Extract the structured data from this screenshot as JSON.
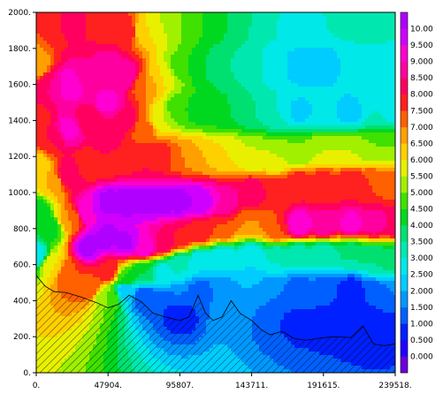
{
  "chart_data": {
    "type": "heatmap",
    "title": "",
    "xlabel": "",
    "ylabel": "",
    "x_ticks": [
      "0.",
      "47904.",
      "95807.",
      "143711.",
      "191615.",
      "239518."
    ],
    "y_ticks": [
      "0.",
      "200.",
      "400.",
      "600.",
      "800.",
      "1000.",
      "1200.",
      "1400.",
      "1600.",
      "1800.",
      "2000."
    ],
    "xlim": [
      0,
      239518
    ],
    "ylim": [
      0,
      2000
    ],
    "colorbar": {
      "labels": [
        "0.000",
        "0.500",
        "1.000",
        "1.500",
        "2.000",
        "2.500",
        "3.000",
        "3.500",
        "4.000",
        "4.500",
        "5.000",
        "5.500",
        "6.000",
        "6.500",
        "7.000",
        "7.500",
        "8.000",
        "8.500",
        "9.000",
        "9.500",
        "10.00"
      ],
      "colors": [
        "#6a00d8",
        "#2000ff",
        "#0020ff",
        "#0060ff",
        "#0098ff",
        "#00ccff",
        "#00e8e8",
        "#00e8b0",
        "#00e070",
        "#00d820",
        "#40e000",
        "#a0f000",
        "#e8f000",
        "#ffd000",
        "#ffa000",
        "#ff6000",
        "#ff2020",
        "#ff0060",
        "#ff00a0",
        "#ff00d0",
        "#d000ff",
        "#b000ff"
      ]
    },
    "terrain_profile": [
      [
        0,
        540
      ],
      [
        6000,
        480
      ],
      [
        12000,
        450
      ],
      [
        20000,
        445
      ],
      [
        30000,
        420
      ],
      [
        40000,
        390
      ],
      [
        47904,
        360
      ],
      [
        55000,
        380
      ],
      [
        62000,
        430
      ],
      [
        70000,
        395
      ],
      [
        78000,
        330
      ],
      [
        86000,
        310
      ],
      [
        95807,
        290
      ],
      [
        102000,
        310
      ],
      [
        108000,
        430
      ],
      [
        113000,
        330
      ],
      [
        118000,
        290
      ],
      [
        124000,
        310
      ],
      [
        130000,
        400
      ],
      [
        136000,
        330
      ],
      [
        143711,
        290
      ],
      [
        150000,
        240
      ],
      [
        156000,
        210
      ],
      [
        164000,
        230
      ],
      [
        172000,
        190
      ],
      [
        180000,
        180
      ],
      [
        191615,
        195
      ],
      [
        200000,
        200
      ],
      [
        210000,
        195
      ],
      [
        218000,
        260
      ],
      [
        225000,
        160
      ],
      [
        232000,
        150
      ],
      [
        239518,
        160
      ]
    ],
    "field_points": [
      [
        0,
        1700,
        6.5
      ],
      [
        0,
        1400,
        7.8
      ],
      [
        0,
        1150,
        6.0
      ],
      [
        0,
        900,
        4.0
      ],
      [
        0,
        650,
        2.5
      ],
      [
        10000,
        1950,
        7.5
      ],
      [
        10000,
        1600,
        8.5
      ],
      [
        10000,
        1300,
        8.0
      ],
      [
        10000,
        1050,
        6.5
      ],
      [
        10000,
        800,
        4.2
      ],
      [
        10000,
        600,
        6.0
      ],
      [
        22000,
        1950,
        8.2
      ],
      [
        22000,
        1600,
        9.5
      ],
      [
        22000,
        1350,
        9.2
      ],
      [
        22000,
        1100,
        8.5
      ],
      [
        22000,
        850,
        7.0
      ],
      [
        22000,
        550,
        7.5
      ],
      [
        35000,
        1900,
        8.0
      ],
      [
        35000,
        1650,
        8.5
      ],
      [
        35000,
        1400,
        8.0
      ],
      [
        35000,
        1150,
        7.5
      ],
      [
        35000,
        900,
        9.5
      ],
      [
        35000,
        700,
        10.2
      ],
      [
        35000,
        480,
        7.5
      ],
      [
        47904,
        1950,
        7.5
      ],
      [
        47904,
        1700,
        8.8
      ],
      [
        47904,
        1500,
        9.2
      ],
      [
        47904,
        1300,
        8.5
      ],
      [
        47904,
        1150,
        7.8
      ],
      [
        47904,
        950,
        10.2
      ],
      [
        47904,
        750,
        10.2
      ],
      [
        47904,
        560,
        8.0
      ],
      [
        47904,
        420,
        5.0
      ],
      [
        60000,
        1900,
        8.0
      ],
      [
        60000,
        1650,
        9.0
      ],
      [
        60000,
        1400,
        8.2
      ],
      [
        60000,
        1200,
        7.5
      ],
      [
        60000,
        950,
        10.2
      ],
      [
        60000,
        720,
        10.1
      ],
      [
        60000,
        520,
        4.5
      ],
      [
        60000,
        460,
        2.0
      ],
      [
        72000,
        1900,
        6.0
      ],
      [
        72000,
        1600,
        7.0
      ],
      [
        72000,
        1350,
        7.2
      ],
      [
        72000,
        1180,
        8.0
      ],
      [
        72000,
        950,
        10.2
      ],
      [
        72000,
        700,
        9.5
      ],
      [
        72000,
        560,
        4.0
      ],
      [
        72000,
        420,
        1.0
      ],
      [
        84000,
        1950,
        5.5
      ],
      [
        84000,
        1650,
        6.0
      ],
      [
        84000,
        1400,
        5.5
      ],
      [
        84000,
        1200,
        7.8
      ],
      [
        84000,
        950,
        10.2
      ],
      [
        84000,
        720,
        8.5
      ],
      [
        84000,
        560,
        2.8
      ],
      [
        84000,
        380,
        1.0
      ],
      [
        95807,
        1950,
        5.0
      ],
      [
        95807,
        1700,
        4.8
      ],
      [
        95807,
        1450,
        4.5
      ],
      [
        95807,
        1200,
        7.0
      ],
      [
        95807,
        950,
        10.2
      ],
      [
        95807,
        750,
        8.0
      ],
      [
        95807,
        600,
        3.0
      ],
      [
        95807,
        420,
        1.5
      ],
      [
        95807,
        330,
        0.5
      ],
      [
        110000,
        1950,
        4.5
      ],
      [
        110000,
        1700,
        4.0
      ],
      [
        110000,
        1450,
        4.2
      ],
      [
        110000,
        1200,
        6.5
      ],
      [
        110000,
        950,
        10.0
      ],
      [
        110000,
        780,
        7.8
      ],
      [
        110000,
        620,
        2.5
      ],
      [
        110000,
        450,
        1.2
      ],
      [
        125000,
        1950,
        4.0
      ],
      [
        125000,
        1700,
        3.5
      ],
      [
        125000,
        1450,
        4.0
      ],
      [
        125000,
        1220,
        6.0
      ],
      [
        125000,
        950,
        9.0
      ],
      [
        125000,
        800,
        7.5
      ],
      [
        125000,
        640,
        2.5
      ],
      [
        125000,
        460,
        1.8
      ],
      [
        143711,
        1950,
        3.5
      ],
      [
        143711,
        1700,
        3.2
      ],
      [
        143711,
        1450,
        3.5
      ],
      [
        143711,
        1200,
        5.5
      ],
      [
        143711,
        1000,
        8.5
      ],
      [
        143711,
        820,
        7.0
      ],
      [
        143711,
        650,
        2.5
      ],
      [
        143711,
        480,
        2.0
      ],
      [
        143711,
        340,
        1.5
      ],
      [
        160000,
        1950,
        3.0
      ],
      [
        160000,
        1700,
        2.6
      ],
      [
        160000,
        1450,
        3.0
      ],
      [
        160000,
        1200,
        5.5
      ],
      [
        160000,
        1000,
        7.8
      ],
      [
        160000,
        800,
        7.5
      ],
      [
        160000,
        640,
        3.0
      ],
      [
        160000,
        460,
        1.5
      ],
      [
        160000,
        300,
        1.0
      ],
      [
        175000,
        1950,
        2.8
      ],
      [
        175000,
        1700,
        2.3
      ],
      [
        175000,
        1450,
        2.4
      ],
      [
        175000,
        1230,
        5.0
      ],
      [
        175000,
        1040,
        8.0
      ],
      [
        175000,
        820,
        9.5
      ],
      [
        175000,
        660,
        3.2
      ],
      [
        175000,
        460,
        1.2
      ],
      [
        175000,
        280,
        0.8
      ],
      [
        191615,
        1950,
        3.0
      ],
      [
        191615,
        1700,
        2.2
      ],
      [
        191615,
        1450,
        2.5
      ],
      [
        191615,
        1230,
        5.5
      ],
      [
        191615,
        1050,
        7.8
      ],
      [
        191615,
        820,
        9.0
      ],
      [
        191615,
        660,
        3.0
      ],
      [
        191615,
        440,
        1.0
      ],
      [
        191615,
        270,
        0.8
      ],
      [
        210000,
        1950,
        3.2
      ],
      [
        210000,
        1700,
        2.6
      ],
      [
        210000,
        1450,
        2.3
      ],
      [
        210000,
        1230,
        5.5
      ],
      [
        210000,
        1050,
        8.0
      ],
      [
        210000,
        830,
        9.2
      ],
      [
        210000,
        660,
        3.5
      ],
      [
        210000,
        460,
        0.8
      ],
      [
        210000,
        290,
        0.5
      ],
      [
        225000,
        1950,
        3.5
      ],
      [
        225000,
        1700,
        2.8
      ],
      [
        225000,
        1450,
        3.0
      ],
      [
        225000,
        1250,
        5.0
      ],
      [
        225000,
        1050,
        7.5
      ],
      [
        225000,
        830,
        8.8
      ],
      [
        225000,
        640,
        3.5
      ],
      [
        225000,
        420,
        1.0
      ],
      [
        225000,
        250,
        0.5
      ],
      [
        239518,
        1950,
        3.0
      ],
      [
        239518,
        1700,
        2.6
      ],
      [
        239518,
        1450,
        2.8
      ],
      [
        239518,
        1250,
        5.0
      ],
      [
        239518,
        1050,
        7.2
      ],
      [
        239518,
        830,
        8.5
      ],
      [
        239518,
        640,
        3.8
      ],
      [
        239518,
        420,
        1.5
      ],
      [
        239518,
        250,
        0.8
      ]
    ]
  }
}
